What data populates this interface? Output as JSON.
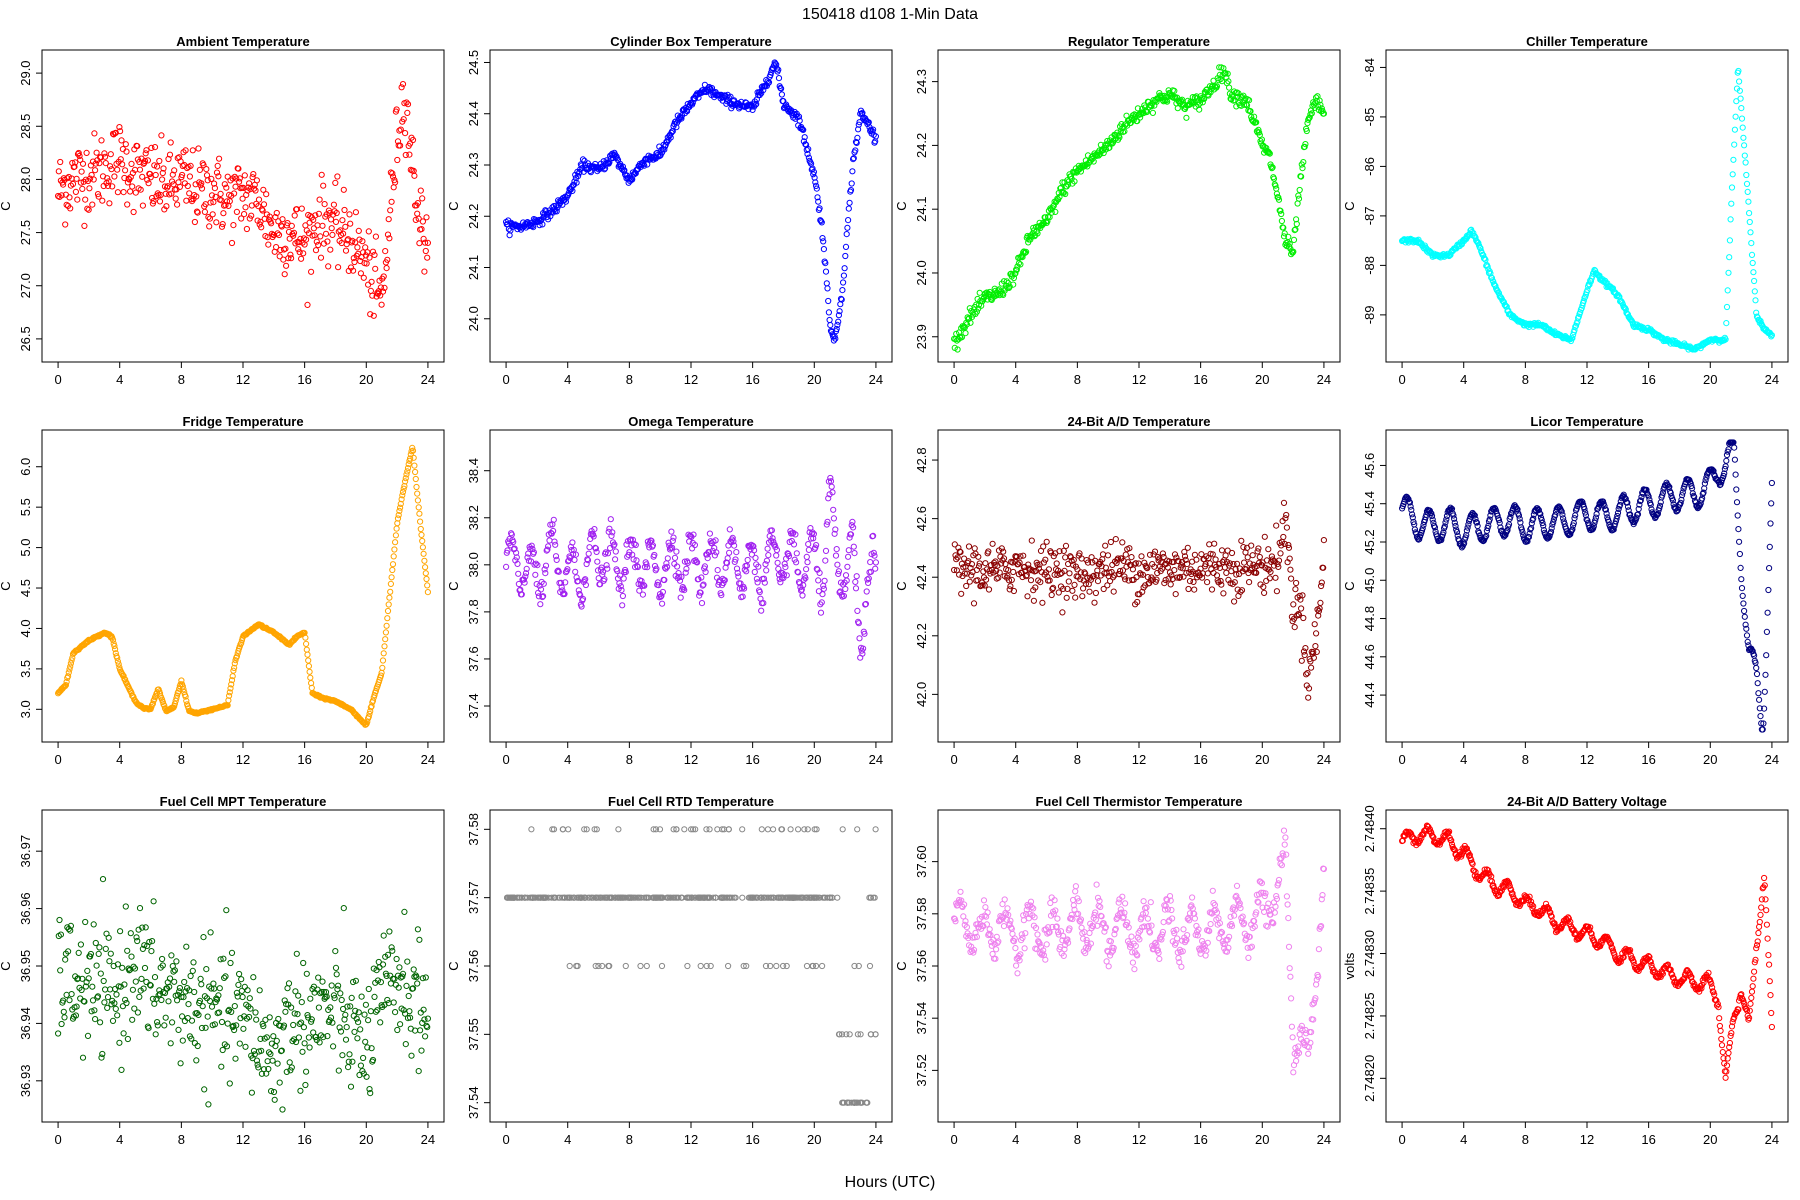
{
  "figure": {
    "title": "150418    d108    1-Min Data",
    "xlabel": "Hours (UTC)"
  },
  "chart_data": [
    {
      "type": "scatter",
      "title": "Ambient Temperature",
      "ylabel": "C",
      "color": "#ff0000",
      "xlim": [
        0,
        24
      ],
      "ylim": [
        26.4,
        29.1
      ],
      "xticks": [
        "0",
        "4",
        "8",
        "12",
        "16",
        "20",
        "24"
      ],
      "yticks": [
        "26.5",
        "27.0",
        "27.5",
        "28.0",
        "28.5",
        "29.0"
      ],
      "x": [
        0,
        1,
        2,
        3,
        4,
        5,
        6,
        7,
        8,
        9,
        10,
        11,
        12,
        13,
        14,
        15,
        16,
        17,
        18,
        19,
        20,
        20.5,
        21,
        21.5,
        22,
        22.5,
        23,
        23.5,
        24
      ],
      "y": [
        27.9,
        28.0,
        28.05,
        28.1,
        28.2,
        28.05,
        28.0,
        27.95,
        28.0,
        27.9,
        27.9,
        27.8,
        27.85,
        27.8,
        27.5,
        27.5,
        27.4,
        27.65,
        27.55,
        27.45,
        27.2,
        27.0,
        26.85,
        27.6,
        28.4,
        28.85,
        28.1,
        27.6,
        27.4
      ],
      "noise": 0.18
    },
    {
      "type": "scatter",
      "title": "Cylinder Box Temperature",
      "ylabel": "C",
      "color": "#0000ff",
      "xlim": [
        0,
        24
      ],
      "ylim": [
        23.94,
        24.5
      ],
      "xticks": [
        "0",
        "4",
        "8",
        "12",
        "16",
        "20",
        "24"
      ],
      "yticks": [
        "24.0",
        "24.1",
        "24.2",
        "24.3",
        "24.4",
        "24.5"
      ],
      "x": [
        0,
        1,
        2,
        3,
        4,
        5,
        6,
        7,
        8,
        9,
        10,
        11,
        12,
        13,
        14,
        15,
        16,
        17,
        17.5,
        18,
        19,
        20,
        20.5,
        21,
        21.3,
        21.8,
        22.5,
        23,
        23.5,
        24
      ],
      "y": [
        24.18,
        24.18,
        24.19,
        24.21,
        24.24,
        24.3,
        24.29,
        24.32,
        24.27,
        24.31,
        24.32,
        24.38,
        24.42,
        24.45,
        24.43,
        24.42,
        24.41,
        24.47,
        24.5,
        24.42,
        24.39,
        24.28,
        24.18,
        24.0,
        23.95,
        24.05,
        24.3,
        24.4,
        24.38,
        24.35
      ],
      "noise": 0.005
    },
    {
      "type": "scatter",
      "title": "Regulator Temperature",
      "ylabel": "C",
      "color": "#00ee00",
      "xlim": [
        0,
        24
      ],
      "ylim": [
        23.88,
        24.33
      ],
      "xticks": [
        "0",
        "4",
        "8",
        "12",
        "16",
        "20",
        "24"
      ],
      "yticks": [
        "23.9",
        "24.0",
        "24.1",
        "24.2",
        "24.3"
      ],
      "x": [
        0,
        1,
        2,
        3,
        4,
        5,
        6,
        7,
        8,
        9,
        10,
        11,
        12,
        13,
        14,
        15,
        16,
        17,
        17.5,
        18,
        19,
        20,
        20.5,
        21,
        21.5,
        22,
        22.5,
        23,
        23.5,
        24
      ],
      "y": [
        23.89,
        23.93,
        23.96,
        23.97,
        24.0,
        24.06,
        24.08,
        24.13,
        24.16,
        24.18,
        24.2,
        24.23,
        24.25,
        24.27,
        24.28,
        24.26,
        24.27,
        24.3,
        24.32,
        24.28,
        24.27,
        24.2,
        24.18,
        24.12,
        24.05,
        24.03,
        24.15,
        24.24,
        24.27,
        24.25
      ],
      "noise": 0.006
    },
    {
      "type": "scatter",
      "title": "Chiller Temperature",
      "ylabel": "C",
      "color": "#00ffff",
      "xlim": [
        0,
        24
      ],
      "ylim": [
        -89.7,
        -83.9
      ],
      "xticks": [
        "0",
        "4",
        "8",
        "12",
        "16",
        "20",
        "24"
      ],
      "yticks": [
        "-89",
        "-88",
        "-87",
        "-86",
        "-85",
        "-84"
      ],
      "x": [
        0,
        1,
        2,
        3,
        4,
        4.5,
        5,
        6,
        7,
        8,
        9,
        10,
        11,
        12,
        12.5,
        13,
        14,
        15,
        16,
        17,
        18,
        19,
        20,
        21,
        21.4,
        21.8,
        22.3,
        23,
        23.5,
        24
      ],
      "y": [
        -87.5,
        -87.5,
        -87.8,
        -87.8,
        -87.5,
        -87.3,
        -87.6,
        -88.4,
        -89.0,
        -89.2,
        -89.2,
        -89.4,
        -89.5,
        -88.5,
        -88.1,
        -88.3,
        -88.6,
        -89.2,
        -89.3,
        -89.5,
        -89.6,
        -89.7,
        -89.5,
        -89.5,
        -86.5,
        -84.0,
        -86.0,
        -89.0,
        -89.3,
        -89.4
      ],
      "noise": 0.02
    },
    {
      "type": "scatter",
      "title": "Fridge Temperature",
      "ylabel": "C",
      "color": "#ffa500",
      "xlim": [
        0,
        24
      ],
      "ylim": [
        2.75,
        6.3
      ],
      "xticks": [
        "0",
        "4",
        "8",
        "12",
        "16",
        "20",
        "24"
      ],
      "yticks": [
        "3.0",
        "3.5",
        "4.0",
        "4.5",
        "5.0",
        "5.5",
        "6.0"
      ],
      "x": [
        0,
        0.5,
        1,
        2,
        3,
        3.5,
        4,
        5,
        5.5,
        6,
        6.5,
        7,
        7.5,
        8,
        8.5,
        9,
        10,
        11,
        11.5,
        12,
        13,
        14,
        15,
        15.5,
        16,
        16.5,
        17,
        18,
        19,
        20,
        20.5,
        21,
        22,
        22.5,
        23,
        23.5,
        24
      ],
      "y": [
        3.2,
        3.3,
        3.7,
        3.85,
        3.95,
        3.9,
        3.5,
        3.1,
        3.02,
        3.0,
        3.25,
        2.98,
        3.02,
        3.35,
        2.98,
        2.95,
        3.0,
        3.05,
        3.6,
        3.9,
        4.05,
        3.95,
        3.8,
        3.9,
        3.95,
        3.2,
        3.15,
        3.1,
        3.0,
        2.8,
        3.15,
        3.45,
        5.3,
        5.8,
        6.25,
        5.3,
        4.45
      ],
      "noise": 0.005
    },
    {
      "type": "scatter",
      "title": "Omega Temperature",
      "ylabel": "C",
      "color": "#a020f0",
      "xlim": [
        0,
        24
      ],
      "ylim": [
        37.3,
        38.52
      ],
      "xticks": [
        "0",
        "4",
        "8",
        "12",
        "16",
        "20",
        "24"
      ],
      "yticks": [
        "37.4",
        "37.6",
        "37.8",
        "38.0",
        "38.2",
        "38.4"
      ],
      "x": [
        0,
        1,
        2,
        3,
        4,
        5,
        6,
        7,
        8,
        9,
        10,
        11,
        12,
        13,
        14,
        15,
        16,
        17,
        18,
        19,
        20,
        20.5,
        21,
        21.5,
        22,
        22.5,
        23,
        23.5,
        24
      ],
      "y": [
        38.0,
        38.0,
        37.95,
        38.05,
        37.95,
        37.98,
        38.05,
        38.0,
        38.0,
        38.0,
        37.98,
        38.02,
        38.0,
        38.0,
        38.02,
        38.0,
        37.98,
        38.0,
        38.02,
        38.0,
        38.02,
        37.95,
        38.25,
        38.0,
        37.95,
        38.05,
        37.7,
        37.9,
        38.0
      ],
      "wave": 0.11,
      "wave_period": 1.3,
      "noise": 0.03
    },
    {
      "type": "scatter",
      "title": "24-Bit A/D Temperature",
      "ylabel": "C",
      "color": "#8b0000",
      "xlim": [
        0,
        24
      ],
      "ylim": [
        41.88,
        42.86
      ],
      "xticks": [
        "0",
        "4",
        "8",
        "12",
        "16",
        "20",
        "24"
      ],
      "yticks": [
        "42.0",
        "42.2",
        "42.4",
        "42.6",
        "42.8"
      ],
      "x": [
        0,
        1,
        2,
        3,
        4,
        5,
        6,
        7,
        8,
        9,
        10,
        11,
        12,
        13,
        14,
        15,
        16,
        17,
        18,
        19,
        20,
        21,
        21.5,
        22,
        22.5,
        23,
        23.5,
        24
      ],
      "y": [
        42.42,
        42.43,
        42.42,
        42.42,
        42.44,
        42.43,
        42.42,
        42.43,
        42.4,
        42.42,
        42.43,
        42.44,
        42.42,
        42.43,
        42.42,
        42.44,
        42.43,
        42.44,
        42.43,
        42.44,
        42.44,
        42.45,
        42.6,
        42.3,
        42.3,
        42.05,
        42.2,
        42.45
      ],
      "noise": 0.045
    },
    {
      "type": "scatter",
      "title": "Licor Temperature",
      "ylabel": "C",
      "color": "#000080",
      "xlim": [
        0,
        24
      ],
      "ylim": [
        44.22,
        45.72
      ],
      "xticks": [
        "0",
        "4",
        "8",
        "12",
        "16",
        "20",
        "24"
      ],
      "yticks": [
        "44.4",
        "44.6",
        "44.8",
        "45.0",
        "45.2",
        "45.4",
        "45.6"
      ],
      "x": [
        0,
        1,
        2,
        3,
        4,
        5,
        6,
        7,
        8,
        9,
        10,
        11,
        12,
        13,
        14,
        15,
        16,
        17,
        18,
        19,
        20,
        20.5,
        21,
        21.5,
        22,
        22.5,
        23,
        23.4,
        23.6,
        24
      ],
      "y": [
        45.38,
        45.3,
        45.28,
        45.3,
        45.25,
        45.28,
        45.3,
        45.32,
        45.28,
        45.3,
        45.3,
        45.32,
        45.35,
        45.33,
        45.35,
        45.38,
        45.4,
        45.42,
        45.45,
        45.45,
        45.5,
        45.58,
        45.6,
        45.7,
        45.1,
        44.6,
        44.5,
        44.25,
        44.6,
        45.45
      ],
      "wave": 0.08,
      "wave_period": 1.4,
      "noise": 0.004
    },
    {
      "type": "scatter",
      "title": "Fuel Cell MPT Temperature",
      "ylabel": "C",
      "color": "#006400",
      "xlim": [
        0,
        24
      ],
      "ylim": [
        36.925,
        36.975
      ],
      "xticks": [
        "0",
        "4",
        "8",
        "12",
        "16",
        "20",
        "24"
      ],
      "yticks": [
        "36.93",
        "36.94",
        "36.95",
        "36.96",
        "36.97"
      ],
      "x": [
        0,
        2,
        4,
        5,
        6,
        8,
        10,
        12,
        14,
        15,
        16,
        18,
        20,
        21,
        22,
        24
      ],
      "y": [
        36.948,
        36.946,
        36.945,
        36.952,
        36.946,
        36.944,
        36.942,
        36.941,
        36.934,
        36.94,
        36.941,
        36.942,
        36.936,
        36.944,
        36.948,
        36.941
      ],
      "noise": 0.0055
    },
    {
      "type": "scatter",
      "title": "Fuel Cell RTD Temperature",
      "ylabel": "C",
      "color": "#888888",
      "xlim": [
        0,
        24
      ],
      "ylim": [
        37.539,
        37.581
      ],
      "xticks": [
        "0",
        "4",
        "8",
        "12",
        "16",
        "20",
        "24"
      ],
      "yticks": [
        "37.54",
        "37.55",
        "37.56",
        "37.57",
        "37.58"
      ],
      "levels": [
        {
          "y": 37.57,
          "from": 0,
          "to": 21.5,
          "density": 1.0
        },
        {
          "y": 37.58,
          "from": 0.2,
          "to": 24,
          "density": 0.12
        },
        {
          "y": 37.56,
          "from": 2.5,
          "to": 24,
          "density": 0.1
        },
        {
          "y": 37.55,
          "from": 21.5,
          "to": 24,
          "density": 0.3
        },
        {
          "y": 37.54,
          "from": 21.8,
          "to": 23.5,
          "density": 1.0
        },
        {
          "y": 37.57,
          "from": 23.4,
          "to": 24,
          "density": 0.5
        }
      ]
    },
    {
      "type": "scatter",
      "title": "Fuel Cell Thermistor Temperature",
      "ylabel": "C",
      "color": "#ee82ee",
      "xlim": [
        0,
        24
      ],
      "ylim": [
        37.505,
        37.615
      ],
      "xticks": [
        "0",
        "4",
        "8",
        "12",
        "16",
        "20",
        "24"
      ],
      "yticks": [
        "37.52",
        "37.54",
        "37.56",
        "37.58",
        "37.60"
      ],
      "x": [
        0,
        1,
        2,
        3,
        4,
        5,
        6,
        7,
        8,
        9,
        10,
        11,
        12,
        13,
        14,
        15,
        16,
        17,
        18,
        19,
        20,
        21,
        21.5,
        22,
        22.5,
        23,
        23.5,
        24
      ],
      "y": [
        37.578,
        37.575,
        37.572,
        37.576,
        37.57,
        37.576,
        37.572,
        37.575,
        37.576,
        37.575,
        37.574,
        37.575,
        37.572,
        37.574,
        37.575,
        37.572,
        37.575,
        37.574,
        37.576,
        37.578,
        37.58,
        37.59,
        37.6,
        37.53,
        37.535,
        37.52,
        37.56,
        37.6
      ],
      "wave": 0.008,
      "wave_period": 1.5,
      "noise": 0.003
    },
    {
      "type": "scatter",
      "title": "24-Bit A/D Battery Voltage",
      "ylabel": "volts",
      "color": "#ff0000",
      "xlim": [
        0,
        24
      ],
      "ylim": [
        2.748175,
        2.748405
      ],
      "xticks": [
        "0",
        "4",
        "8",
        "12",
        "16",
        "20",
        "24"
      ],
      "yticks": [
        "2.74820",
        "2.74825",
        "2.74830",
        "2.74835",
        "2.74840"
      ],
      "x": [
        0,
        1,
        2,
        3,
        4,
        5,
        6,
        7,
        8,
        9,
        10,
        11,
        12,
        13,
        14,
        15,
        16,
        17,
        18,
        19,
        20,
        20.5,
        21,
        21.5,
        22,
        22.5,
        23,
        23.5,
        24
      ],
      "y": [
        2.74839,
        2.748395,
        2.748395,
        2.74839,
        2.74838,
        2.748365,
        2.748355,
        2.74835,
        2.74834,
        2.748335,
        2.748325,
        2.74832,
        2.748315,
        2.74831,
        2.7483,
        2.748295,
        2.74829,
        2.748285,
        2.74828,
        2.748278,
        2.748275,
        2.748265,
        2.748195,
        2.74825,
        2.74827,
        2.74824,
        2.74831,
        2.74836,
        2.74824
      ],
      "wave": 6e-06,
      "wave_period": 1.3,
      "noise": 1.2e-06
    }
  ]
}
